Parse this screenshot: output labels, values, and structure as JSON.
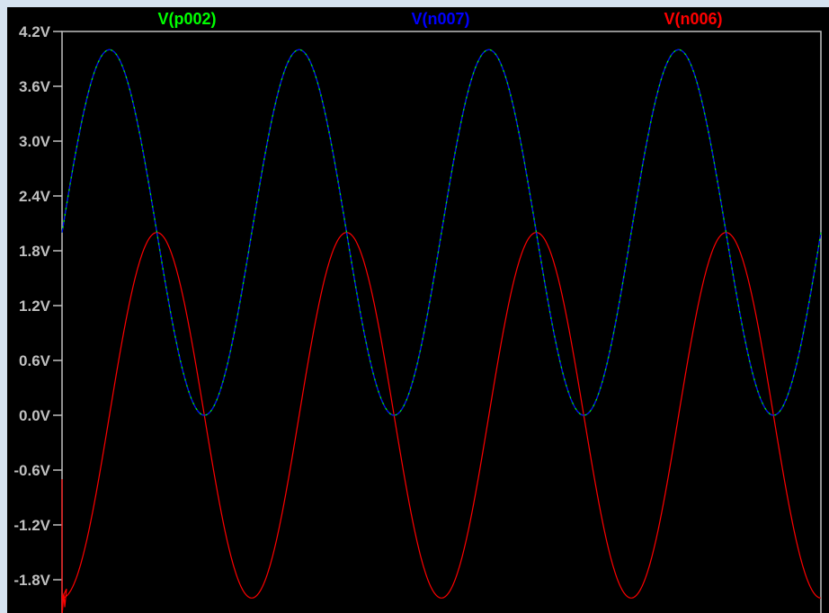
{
  "chart_data": {
    "type": "line",
    "title": "",
    "xlabel": "",
    "ylabel": "",
    "ylim": [
      -2.2,
      4.2
    ],
    "y_ticks": [
      "4.2V",
      "3.6V",
      "3.0V",
      "2.4V",
      "1.8V",
      "1.2V",
      "0.6V",
      "0.0V",
      "-0.6V",
      "-1.2V",
      "-1.8V"
    ],
    "y_tick_values": [
      4.2,
      3.6,
      3.0,
      2.4,
      1.8,
      1.2,
      0.6,
      0.0,
      -0.6,
      -1.2,
      -1.8
    ],
    "grid": false,
    "background": "#000000",
    "cycles_visible": 4,
    "legend_placement": "top",
    "series": [
      {
        "name": "V(p002)",
        "color": "#00ff00",
        "waveform": "sine",
        "offset_v": 2.0,
        "amplitude_v": 2.0,
        "min_v": 0.0,
        "max_v": 4.0,
        "start_v": 2.0
      },
      {
        "name": "V(n007)",
        "color": "#0000ff",
        "waveform": "sine",
        "offset_v": 2.0,
        "amplitude_v": 2.0,
        "min_v": 0.0,
        "max_v": 4.0,
        "start_v": 2.0
      },
      {
        "name": "V(n006)",
        "color": "#ff0000",
        "waveform": "sine",
        "offset_v": 0.0,
        "amplitude_v": 2.0,
        "min_v": -2.0,
        "max_v": 2.0,
        "start_v": -2.0,
        "startup_spike_v": -0.7
      }
    ]
  }
}
